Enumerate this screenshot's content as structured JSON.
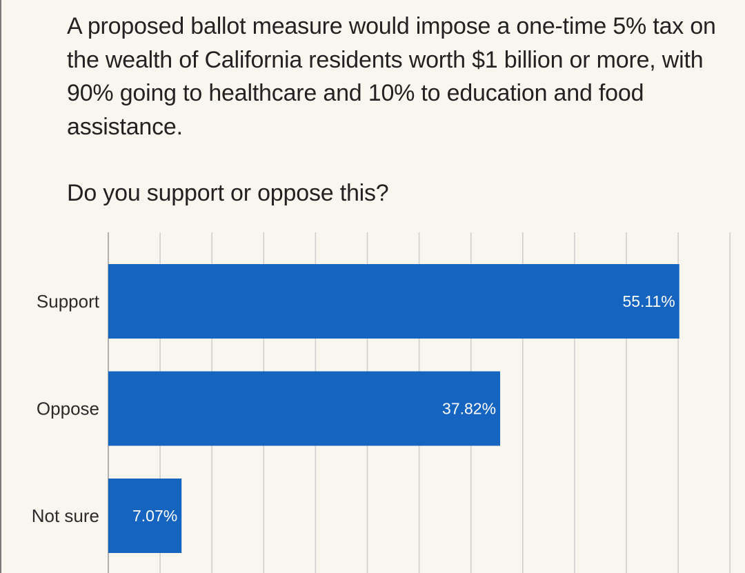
{
  "question": {
    "text": "A proposed ballot measure would impose a one-time 5% tax on the wealth of California residents worth $1 billion or more, with 90% going to healthcare and 10% to education and food assistance.",
    "prompt": "Do you support or oppose this?"
  },
  "colors": {
    "bar": "#1565c0",
    "background": "#f9f6ef",
    "grid": "#cccccc"
  },
  "chart_data": {
    "type": "bar",
    "orientation": "horizontal",
    "categories": [
      "Support",
      "Oppose",
      "Not sure"
    ],
    "values": [
      55.11,
      37.82,
      7.07
    ],
    "value_labels": [
      "55.11%",
      "37.82%",
      "7.07%"
    ],
    "xlim": [
      0,
      60
    ],
    "grid": true,
    "title": "",
    "xlabel": "",
    "ylabel": ""
  }
}
